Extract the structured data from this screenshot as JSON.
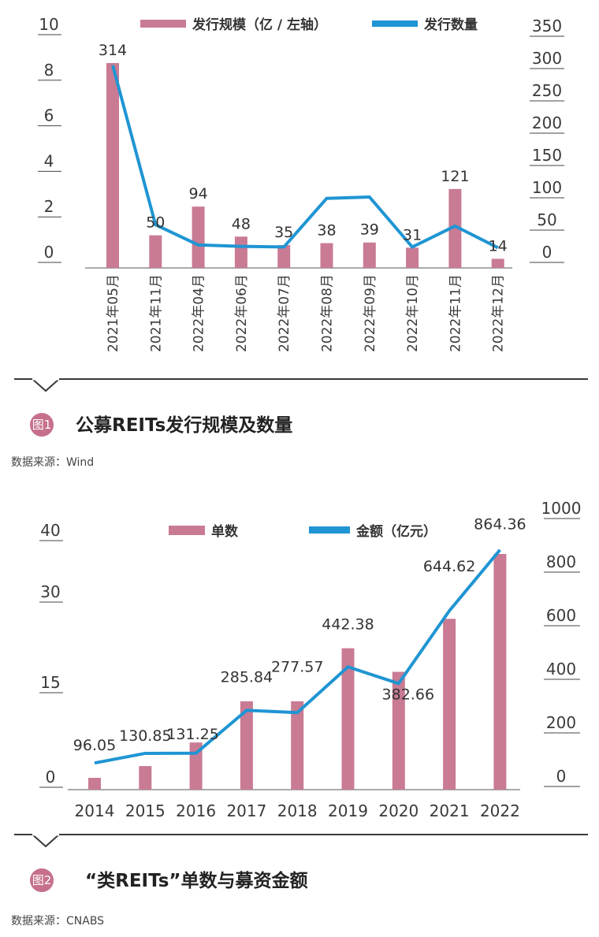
{
  "chart_data": [
    {
      "type": "bar+line",
      "legend": {
        "bar": "发行规模（亿 / 左轴）",
        "line": "发行数量"
      },
      "categories": [
        "2021年05月",
        "2021年11月",
        "2022年04月",
        "2022年06月",
        "2022年07月",
        "2022年08月",
        "2022年09月",
        "2022年10月",
        "2022年11月",
        "2022年12月"
      ],
      "bar_values": [
        314,
        50,
        94,
        48,
        35,
        38,
        39,
        31,
        121,
        14
      ],
      "line_values": [
        300,
        64,
        34,
        32,
        31,
        103,
        105,
        31,
        62,
        30
      ],
      "left_axis": {
        "ticks": [
          "10",
          "8",
          "6",
          "4",
          "2",
          "0"
        ],
        "range": [
          0,
          10
        ]
      },
      "right_axis": {
        "ticks": [
          "350",
          "300",
          "250",
          "200",
          "150",
          "100",
          "50",
          "0"
        ],
        "range": [
          0,
          350
        ]
      },
      "bar_scale_max": 314,
      "colors": {
        "bar": "#c97b93",
        "line": "#1f95d3"
      }
    },
    {
      "type": "bar+line",
      "legend": {
        "bar": "单数",
        "line": "金额（亿元）"
      },
      "categories": [
        "2014",
        "2015",
        "2016",
        "2017",
        "2018",
        "2019",
        "2020",
        "2021",
        "2022"
      ],
      "bar_values": [
        2,
        4,
        8,
        15,
        15,
        24,
        20,
        29,
        40
      ],
      "line_values": [
        96.05,
        130.85,
        131.25,
        285.84,
        277.57,
        442.38,
        382.66,
        644.62,
        864.36
      ],
      "line_labels": [
        "96.05",
        "130.85",
        "131.25",
        "285.84",
        "277.57",
        "442.38",
        "382.66",
        "644.62",
        "864.36"
      ],
      "left_axis": {
        "ticks": [
          "40",
          "30",
          "15",
          "0"
        ]
      },
      "right_axis": {
        "ticks": [
          "1000",
          "800",
          "600",
          "400",
          "200",
          "0"
        ],
        "range": [
          0,
          1000
        ]
      },
      "colors": {
        "bar": "#c97b93",
        "line": "#1f95d3"
      }
    }
  ],
  "figure1": {
    "badge": "图1",
    "title": "公募REITs发行规模及数量",
    "source": "数据来源：Wind"
  },
  "figure2": {
    "badge": "图2",
    "title": "“类REITs”单数与募资金额",
    "source": "数据来源：CNABS"
  }
}
